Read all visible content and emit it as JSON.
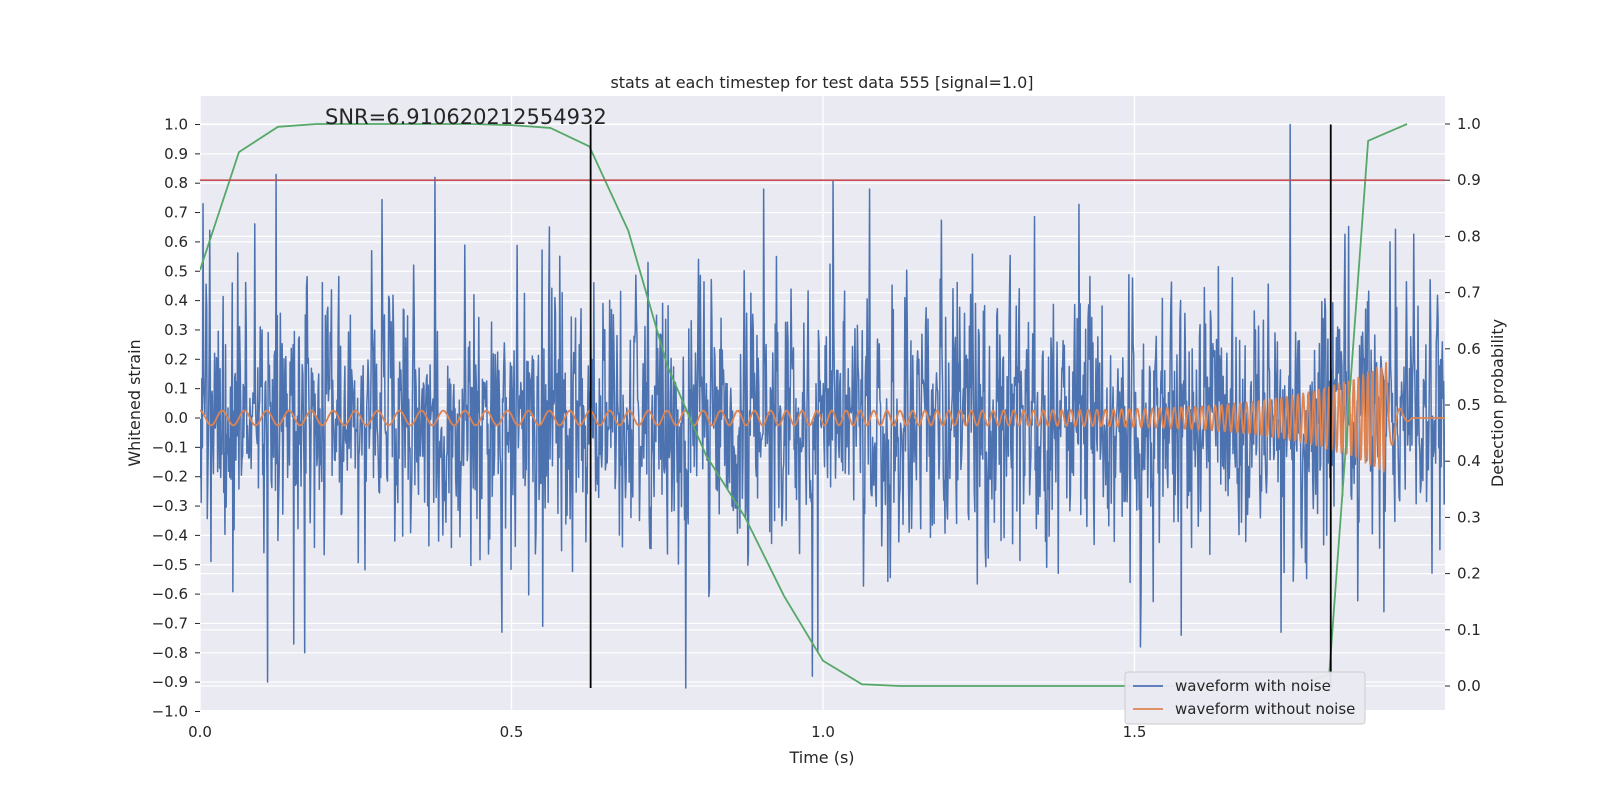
{
  "chart_data": {
    "type": "line",
    "title": "stats at each timestep for test data 555 [signal=1.0]",
    "xlabel": "Time (s)",
    "ylabel": "Whitened strain",
    "y2label": "Detection probability",
    "xlim": [
      0.0,
      2.0
    ],
    "ylim": [
      -1.0,
      1.0
    ],
    "y2lim": [
      -0.04,
      1.04
    ],
    "x_ticks": [
      0.0,
      0.5,
      1.0,
      1.5
    ],
    "y_ticks": [
      -1.0,
      -0.9,
      -0.8,
      -0.7,
      -0.6,
      -0.5,
      -0.4,
      -0.3,
      -0.2,
      -0.1,
      0.0,
      0.1,
      0.2,
      0.3,
      0.4,
      0.5,
      0.6,
      0.7,
      0.8,
      0.9,
      1.0
    ],
    "y2_ticks": [
      0.0,
      0.1,
      0.2,
      0.3,
      0.4,
      0.5,
      0.6,
      0.7,
      0.8,
      0.9,
      1.0
    ],
    "grid": true,
    "legend_position": "bottom-right",
    "annotation": "SNR=6.910620212554932",
    "threshold": {
      "axis": "y2",
      "value": 0.9,
      "color": "#c44e52"
    },
    "vertical_markers": [
      {
        "x": 0.627,
        "y_from": -0.92,
        "y_to": 1.0,
        "color": "#000000"
      },
      {
        "x": 1.815,
        "y_from": -0.92,
        "y_to": 1.0,
        "color": "#000000"
      }
    ],
    "series": [
      {
        "name": "waveform with noise",
        "color": "#4c72b0",
        "axis": "y",
        "kind": "noise",
        "n_samples": 2048,
        "spread": 0.27,
        "peaks": [
          {
            "x": 0.005,
            "y": 0.73
          },
          {
            "x": 0.108,
            "y": -0.9
          },
          {
            "x": 0.122,
            "y": 0.83
          },
          {
            "x": 0.15,
            "y": -0.77
          },
          {
            "x": 0.168,
            "y": -0.8
          },
          {
            "x": 0.377,
            "y": 0.82
          },
          {
            "x": 0.485,
            "y": -0.73
          },
          {
            "x": 0.55,
            "y": -0.71
          },
          {
            "x": 0.78,
            "y": -0.92
          },
          {
            "x": 1.016,
            "y": 0.81
          },
          {
            "x": 1.51,
            "y": -0.78
          },
          {
            "x": 1.575,
            "y": -0.74
          },
          {
            "x": 1.735,
            "y": -0.73
          },
          {
            "x": 1.75,
            "y": 1.0
          },
          {
            "x": 1.91,
            "y": 0.6
          },
          {
            "x": 1.9,
            "y": -0.66
          }
        ]
      },
      {
        "name": "waveform without noise",
        "color": "#dd8452",
        "axis": "y",
        "kind": "chirp",
        "amplitude_start": 0.025,
        "amplitude_peak": 0.19,
        "freq_start_hz": 28,
        "freq_end_hz": 140,
        "merger_time": 1.905,
        "end_time": 2.0
      },
      {
        "name": "",
        "color": "#55a868",
        "axis": "y2",
        "kind": "line",
        "x": [
          0.0,
          0.0625,
          0.125,
          0.1875,
          0.25,
          0.3125,
          0.375,
          0.4375,
          0.5,
          0.5625,
          0.625,
          0.6875,
          0.75,
          0.8125,
          0.875,
          0.9375,
          1.0,
          1.0625,
          1.125,
          1.1875,
          1.25,
          1.3125,
          1.375,
          1.4375,
          1.5,
          1.5625,
          1.625,
          1.6875,
          1.75,
          1.8125,
          1.875,
          1.9375
        ],
        "y": [
          0.74,
          0.95,
          0.995,
          1.0,
          1.0,
          1.0,
          1.0,
          1.0,
          0.998,
          0.993,
          0.96,
          0.81,
          0.57,
          0.41,
          0.3,
          0.16,
          0.045,
          0.003,
          0.0,
          0.0,
          0.0,
          0.0,
          0.0,
          0.0,
          0.0,
          0.0,
          0.0,
          0.0,
          0.0,
          0.02,
          0.97,
          1.0
        ]
      }
    ]
  }
}
